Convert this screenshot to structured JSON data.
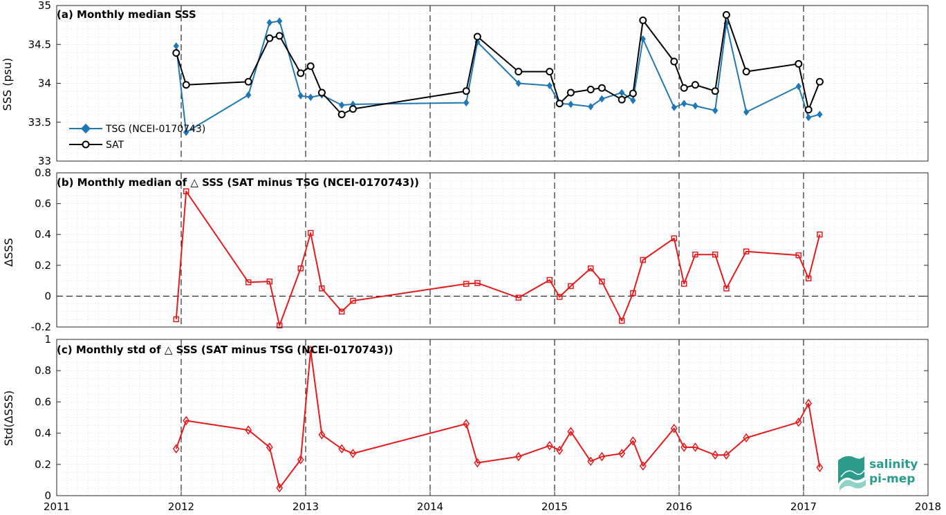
{
  "chart_data": [
    {
      "type": "line",
      "title": "(a) Monthly median SSS",
      "ylabel": "SSS (psu)",
      "ylim": [
        33,
        35
      ],
      "yticks": [
        "33",
        "33.5",
        "34",
        "34.5",
        "35"
      ],
      "legend_position": "bottom-left",
      "series": [
        {
          "name": "TSG (NCEI-0170743)",
          "color": "#1f77b4",
          "marker": "diamond",
          "x": [
            2011.96,
            2012.04,
            2012.54,
            2012.71,
            2012.79,
            2012.96,
            2013.04,
            2013.13,
            2013.29,
            2013.38,
            2014.29,
            2014.38,
            2014.71,
            2014.96,
            2015.04,
            2015.13,
            2015.29,
            2015.38,
            2015.54,
            2015.63,
            2015.71,
            2015.96,
            2016.04,
            2016.13,
            2016.29,
            2016.38,
            2016.54,
            2016.96,
            2017.04,
            2017.13
          ],
          "y": [
            34.48,
            33.37,
            33.85,
            34.78,
            34.8,
            33.84,
            33.82,
            33.85,
            33.72,
            33.73,
            33.75,
            34.53,
            34.0,
            33.97,
            33.74,
            33.73,
            33.7,
            33.8,
            33.88,
            33.78,
            34.57,
            33.69,
            33.74,
            33.71,
            33.65,
            34.77,
            33.63,
            33.96,
            33.56,
            33.6
          ]
        },
        {
          "name": "SAT",
          "color": "#000000",
          "marker": "circle",
          "x": [
            2011.96,
            2012.04,
            2012.54,
            2012.71,
            2012.79,
            2012.96,
            2013.04,
            2013.13,
            2013.29,
            2013.38,
            2014.29,
            2014.38,
            2014.71,
            2014.96,
            2015.04,
            2015.13,
            2015.29,
            2015.38,
            2015.54,
            2015.63,
            2015.71,
            2015.96,
            2016.04,
            2016.13,
            2016.29,
            2016.38,
            2016.54,
            2016.96,
            2017.04,
            2017.13
          ],
          "y": [
            34.39,
            33.98,
            34.02,
            34.58,
            34.61,
            34.13,
            34.22,
            33.88,
            33.6,
            33.67,
            33.9,
            34.6,
            34.15,
            34.15,
            33.74,
            33.88,
            33.92,
            33.94,
            33.79,
            33.87,
            34.81,
            34.28,
            33.94,
            33.98,
            33.9,
            34.88,
            34.15,
            34.25,
            33.66,
            34.02
          ]
        }
      ]
    },
    {
      "type": "line",
      "title": "(b) Monthly median of △ SSS (SAT minus TSG (NCEI-0170743))",
      "ylabel": "ΔSSS",
      "ylim": [
        -0.2,
        0.8
      ],
      "yticks": [
        "-0.2",
        "0",
        "0.2",
        "0.4",
        "0.6",
        "0.8"
      ],
      "zero_line": "dashed",
      "series": [
        {
          "color": "#e41a1c",
          "marker": "square",
          "x": [
            2011.96,
            2012.04,
            2012.54,
            2012.71,
            2012.79,
            2012.96,
            2013.04,
            2013.13,
            2013.29,
            2013.38,
            2014.29,
            2014.38,
            2014.71,
            2014.96,
            2015.04,
            2015.13,
            2015.29,
            2015.38,
            2015.54,
            2015.63,
            2015.71,
            2015.96,
            2016.04,
            2016.13,
            2016.29,
            2016.38,
            2016.54,
            2016.96,
            2017.04,
            2017.13
          ],
          "y": [
            -0.15,
            0.68,
            0.09,
            0.095,
            -0.19,
            0.18,
            0.41,
            0.05,
            -0.1,
            -0.03,
            0.08,
            0.085,
            -0.01,
            0.105,
            -0.005,
            0.065,
            0.18,
            0.095,
            -0.16,
            0.02,
            0.235,
            0.375,
            0.08,
            0.27,
            0.27,
            0.05,
            0.29,
            0.265,
            0.115,
            0.4
          ]
        }
      ]
    },
    {
      "type": "line",
      "title": "(c) Monthly std of △ SSS (SAT minus TSG (NCEI-0170743))",
      "ylabel": "Std(ΔSSS)",
      "ylim": [
        0,
        1
      ],
      "yticks": [
        "0",
        "0.2",
        "0.4",
        "0.6",
        "0.8",
        "1"
      ],
      "xticks": [
        "2011",
        "2012",
        "2013",
        "2014",
        "2015",
        "2016",
        "2017",
        "2018"
      ],
      "xlim": [
        2011,
        2018
      ],
      "series": [
        {
          "color": "#e41a1c",
          "marker": "diamond",
          "x": [
            2011.96,
            2012.04,
            2012.54,
            2012.71,
            2012.79,
            2012.96,
            2013.04,
            2013.13,
            2013.29,
            2013.38,
            2014.29,
            2014.38,
            2014.71,
            2014.96,
            2015.04,
            2015.13,
            2015.29,
            2015.38,
            2015.54,
            2015.63,
            2015.71,
            2015.96,
            2016.04,
            2016.13,
            2016.29,
            2016.38,
            2016.54,
            2016.96,
            2017.04,
            2017.13
          ],
          "y": [
            0.3,
            0.48,
            0.42,
            0.31,
            0.05,
            0.23,
            0.93,
            0.39,
            0.3,
            0.27,
            0.46,
            0.21,
            0.25,
            0.32,
            0.29,
            0.41,
            0.22,
            0.25,
            0.27,
            0.35,
            0.19,
            0.43,
            0.31,
            0.31,
            0.26,
            0.26,
            0.37,
            0.47,
            0.59,
            0.18
          ]
        }
      ]
    }
  ],
  "logo": {
    "line1": "salinity",
    "line2": "pi-mep",
    "color": "#2b9c8c"
  }
}
